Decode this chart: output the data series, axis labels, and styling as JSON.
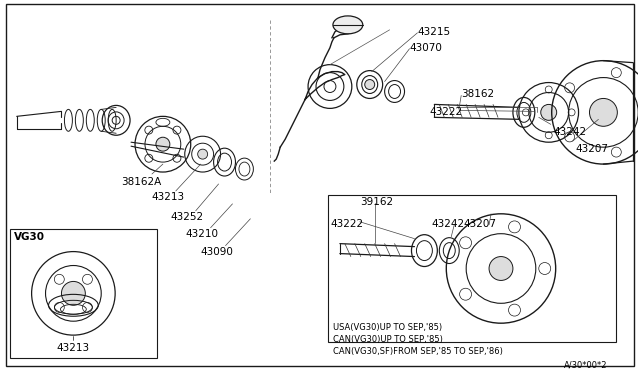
{
  "bg_color": "#ffffff",
  "border_color": "#000000",
  "line_color": "#1a1a1a",
  "text_color": "#000000",
  "diagram_ref": "A/30*00*2",
  "notes": [
    "USA(VG30)UP TO SEP,'85)",
    "CAN(VG30)UP TO SEP,'85)",
    "CAN(VG30,SF)FROM SEP,'85 TO SEP,'86)"
  ],
  "font_size_label": 7.5,
  "font_size_notes": 6.0,
  "font_size_ref": 6.0
}
